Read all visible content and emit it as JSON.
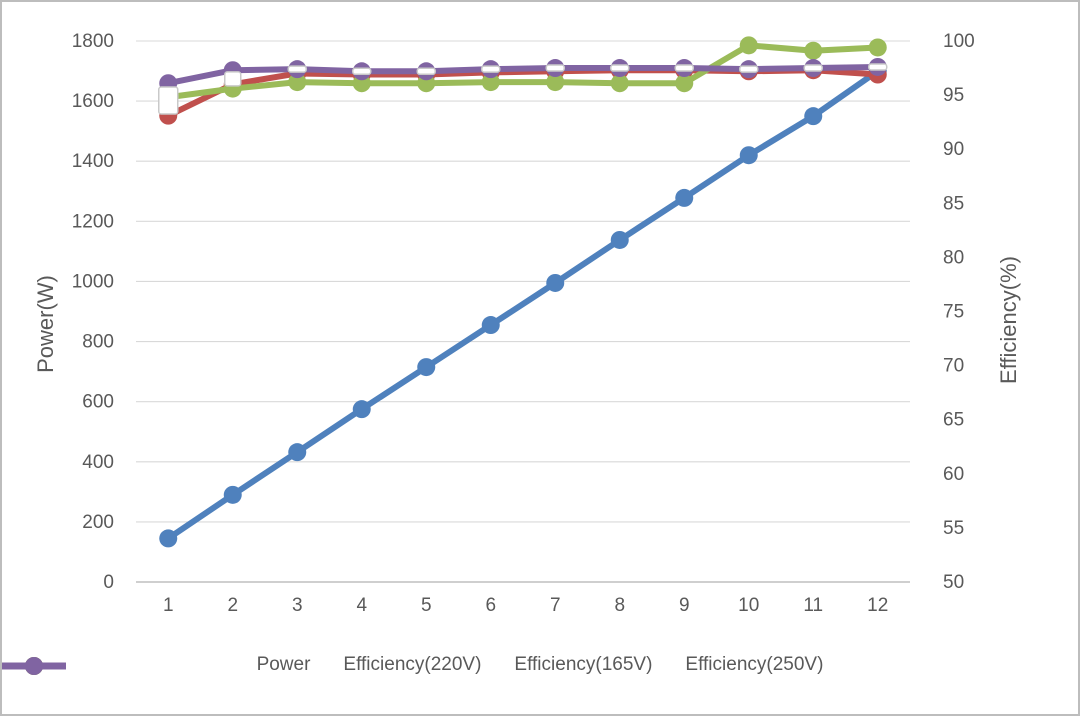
{
  "chart_data": {
    "type": "line",
    "title": "",
    "x_categories": [
      "1",
      "2",
      "3",
      "4",
      "5",
      "6",
      "7",
      "8",
      "9",
      "10",
      "11",
      "12"
    ],
    "left_axis": {
      "title": "Power(W)",
      "min": 0,
      "max": 1800,
      "step": 200,
      "tick_labels": [
        "0",
        "200",
        "400",
        "600",
        "800",
        "1000",
        "1200",
        "1400",
        "1600",
        "1800"
      ]
    },
    "right_axis": {
      "title": "Efficiency(%)",
      "min": 50,
      "max": 100,
      "step": 5,
      "tick_labels": [
        "50",
        "55",
        "60",
        "65",
        "70",
        "75",
        "80",
        "85",
        "90",
        "95",
        "100"
      ]
    },
    "grid": {
      "gridline_color": "#d9d9d9",
      "axis_line_color": "#bfbfbf"
    },
    "text_color": "#595959",
    "series": [
      {
        "name": "Power",
        "axis": "left",
        "color": "#4f81bd",
        "marker": "circle",
        "values": [
          145,
          290,
          432,
          575,
          715,
          855,
          995,
          1138,
          1278,
          1420,
          1550,
          1700
        ]
      },
      {
        "name": "Efficiency(220V)",
        "axis": "right",
        "color": "#c0504d",
        "marker": "circle",
        "values": [
          93.1,
          96.0,
          97.0,
          96.9,
          96.9,
          97.1,
          97.2,
          97.3,
          97.3,
          97.2,
          97.3,
          96.9
        ]
      },
      {
        "name": "Efficiency(165V)",
        "axis": "right",
        "color": "#9bbb59",
        "marker": "circle",
        "values": [
          94.8,
          95.6,
          96.2,
          96.1,
          96.1,
          96.2,
          96.2,
          96.1,
          96.1,
          99.6,
          99.1,
          99.4
        ]
      },
      {
        "name": "Efficiency(250V)",
        "axis": "right",
        "color": "#8064a2",
        "marker": "circle",
        "values": [
          96.1,
          97.3,
          97.4,
          97.2,
          97.2,
          97.4,
          97.5,
          97.5,
          97.5,
          97.4,
          97.5,
          97.6
        ]
      }
    ],
    "white_marker_overlays": {
      "fill": "#ffffff",
      "border": "#c9c9c9",
      "points": [
        {
          "x": 1,
          "value": 94.5,
          "w": 19,
          "h": 27
        },
        {
          "x": 2,
          "value": 96.5,
          "w": 16,
          "h": 14
        },
        {
          "x": 3,
          "value": 97.4,
          "w": 18,
          "h": 6
        },
        {
          "x": 4,
          "value": 97.2,
          "w": 18,
          "h": 6
        },
        {
          "x": 5,
          "value": 97.2,
          "w": 18,
          "h": 6
        },
        {
          "x": 6,
          "value": 97.4,
          "w": 18,
          "h": 6
        },
        {
          "x": 7,
          "value": 97.5,
          "w": 18,
          "h": 6
        },
        {
          "x": 8,
          "value": 97.5,
          "w": 18,
          "h": 6
        },
        {
          "x": 9,
          "value": 97.5,
          "w": 18,
          "h": 6
        },
        {
          "x": 10,
          "value": 97.4,
          "w": 18,
          "h": 6
        },
        {
          "x": 11,
          "value": 97.5,
          "w": 18,
          "h": 6
        },
        {
          "x": 12,
          "value": 97.6,
          "w": 18,
          "h": 6
        }
      ]
    },
    "legend": {
      "position": "bottom",
      "entries": [
        "Power",
        "Efficiency(220V)",
        "Efficiency(165V)",
        "Efficiency(250V)"
      ]
    }
  }
}
